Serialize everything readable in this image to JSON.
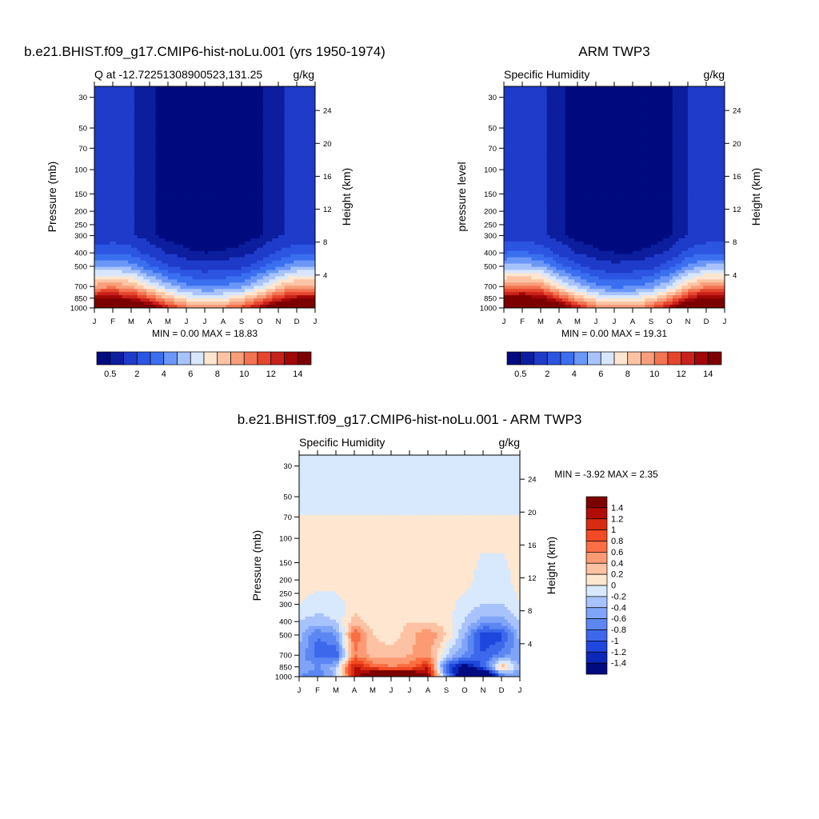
{
  "months": [
    "J",
    "F",
    "M",
    "A",
    "M",
    "J",
    "J",
    "A",
    "S",
    "O",
    "N",
    "D",
    "J"
  ],
  "pressure_ticks": [
    30,
    50,
    70,
    100,
    150,
    200,
    250,
    300,
    400,
    500,
    700,
    850,
    1000
  ],
  "height_ticks": [
    4,
    8,
    12,
    16,
    20,
    24
  ],
  "colors": {
    "q_levels": [
      "#000b7f",
      "#0c1e9e",
      "#1f3bc9",
      "#2c55e2",
      "#3b6ff0",
      "#6b97f7",
      "#a8c3fb",
      "#d9e7fe",
      "#ffe6d0",
      "#fcc4a4",
      "#f89e7b",
      "#f37452",
      "#e5462d",
      "#c8211b",
      "#a10707",
      "#7c0000"
    ],
    "diff_levels": [
      "#7c0000",
      "#b10d06",
      "#d72c12",
      "#f24a24",
      "#fb6e43",
      "#fc9b73",
      "#fdc1a3",
      "#ffe6d0",
      "#d8e8fd",
      "#a8c3fb",
      "#80a5f8",
      "#5c87f2",
      "#3d68ec",
      "#1e47dd",
      "#0b28b8",
      "#000b7f"
    ]
  },
  "panels": [
    {
      "title": "b.e21.BHIST.f09_g17.CMIP6-hist-noLu.001 (yrs 1950-1974)",
      "left_label": "Q at -12.72251308900523,131.25",
      "right_label": "g/kg",
      "ylabel": "Pressure (mb)",
      "ylabel_right": "Height (km)",
      "stats": "MIN =   0.00 MAX =  18.83",
      "colorbar_labels": [
        "0.5",
        "2",
        "4",
        "6",
        "8",
        "10",
        "12",
        "14"
      ]
    },
    {
      "title": "ARM TWP3",
      "left_label": "Specific Humidity",
      "right_label": "g/kg",
      "ylabel": "pressure level",
      "ylabel_right": "Height (km)",
      "stats": "MIN =   0.00 MAX =  19.31",
      "colorbar_labels": [
        "0.5",
        "2",
        "4",
        "6",
        "8",
        "10",
        "12",
        "14"
      ]
    },
    {
      "title": "b.e21.BHIST.f09_g17.CMIP6-hist-noLu.001 - ARM TWP3",
      "left_label": "Specific Humidity",
      "right_label": "g/kg",
      "ylabel": "Pressure (mb)",
      "ylabel_right": "Height (km)",
      "stats": "MIN =  -3.92 MAX =   2.35",
      "colorbar_labels": [
        "1.4",
        "1.2",
        "1",
        "0.8",
        "0.6",
        "0.4",
        "0.2",
        "0",
        "-0.2",
        "-0.4",
        "-0.6",
        "-0.8",
        "-1",
        "-1.2",
        "-1.4"
      ]
    }
  ],
  "chart_data": [
    {
      "type": "heatmap",
      "title": "b.e21.BHIST.f09_g17.CMIP6-hist-noLu.001 (yrs 1950-1974)",
      "xlabel": "",
      "ylabel": "Pressure (mb)",
      "x": [
        "J",
        "F",
        "M",
        "A",
        "M",
        "J",
        "J",
        "A",
        "S",
        "O",
        "N",
        "D",
        "J"
      ],
      "y": [
        1000,
        850,
        700,
        500,
        400,
        300
      ],
      "values": [
        [
          18.5,
          18.8,
          18.2,
          15.5,
          12.5,
          10.5,
          9.8,
          10.2,
          11.5,
          13.5,
          16.5,
          18.3,
          18.5
        ],
        [
          13.5,
          13.8,
          13.0,
          11.0,
          8.8,
          7.3,
          6.8,
          7.1,
          8.0,
          9.8,
          12.0,
          13.5,
          13.5
        ],
        [
          9.5,
          9.8,
          9.2,
          7.2,
          5.5,
          4.3,
          3.9,
          4.1,
          4.7,
          6.2,
          8.2,
          9.5,
          9.5
        ],
        [
          4.8,
          5.0,
          4.6,
          3.2,
          2.1,
          1.5,
          1.3,
          1.4,
          1.7,
          2.6,
          3.9,
          4.8,
          4.8
        ],
        [
          2.8,
          3.0,
          2.6,
          1.6,
          0.9,
          0.6,
          0.5,
          0.55,
          0.7,
          1.2,
          2.1,
          2.8,
          2.8
        ],
        [
          1.2,
          1.3,
          1.1,
          0.6,
          0.3,
          0.2,
          0.15,
          0.18,
          0.25,
          0.45,
          0.9,
          1.2,
          1.2
        ]
      ],
      "levels": [
        0.5,
        1,
        2,
        3,
        4,
        5,
        6,
        7,
        8,
        9,
        10,
        11,
        12,
        13,
        14
      ],
      "ylim": [
        1000,
        25
      ]
    },
    {
      "type": "heatmap",
      "title": "ARM TWP3",
      "xlabel": "",
      "ylabel": "pressure level",
      "x": [
        "J",
        "F",
        "M",
        "A",
        "M",
        "J",
        "J",
        "A",
        "S",
        "O",
        "N",
        "D",
        "J"
      ],
      "y": [
        1000,
        850,
        700,
        500,
        400,
        300
      ],
      "values": [
        [
          19.0,
          19.3,
          18.8,
          16.0,
          12.8,
          10.5,
          9.5,
          9.8,
          11.0,
          13.5,
          17.0,
          19.0,
          19.0
        ],
        [
          14.5,
          14.8,
          14.2,
          11.5,
          9.0,
          7.3,
          6.5,
          6.8,
          7.8,
          9.8,
          12.5,
          14.5,
          14.5
        ],
        [
          10.0,
          10.3,
          9.8,
          7.5,
          5.6,
          4.2,
          3.7,
          3.9,
          4.5,
          6.0,
          8.5,
          10.0,
          10.0
        ],
        [
          5.2,
          5.4,
          5.0,
          3.4,
          2.2,
          1.5,
          1.2,
          1.3,
          1.6,
          2.6,
          4.2,
          5.2,
          5.2
        ],
        [
          3.0,
          3.2,
          2.8,
          1.7,
          0.95,
          0.6,
          0.5,
          0.5,
          0.65,
          1.2,
          2.3,
          3.0,
          3.0
        ],
        [
          1.3,
          1.4,
          1.2,
          0.6,
          0.3,
          0.2,
          0.15,
          0.15,
          0.2,
          0.4,
          1.0,
          1.3,
          1.3
        ]
      ],
      "levels": [
        0.5,
        1,
        2,
        3,
        4,
        5,
        6,
        7,
        8,
        9,
        10,
        11,
        12,
        13,
        14
      ],
      "ylim": [
        1000,
        25
      ]
    },
    {
      "type": "heatmap",
      "title": "b.e21.BHIST.f09_g17.CMIP6-hist-noLu.001 - ARM TWP3",
      "xlabel": "",
      "ylabel": "Pressure (mb)",
      "x": [
        "J",
        "F",
        "M",
        "A",
        "M",
        "J",
        "J",
        "A",
        "S",
        "O",
        "N",
        "D",
        "J"
      ],
      "y": [
        1000,
        850,
        700,
        500,
        400,
        300,
        200,
        100,
        30
      ],
      "values": [
        [
          -0.6,
          -0.8,
          -0.3,
          1.2,
          2.0,
          2.3,
          2.1,
          1.5,
          -0.6,
          -2.0,
          -2.8,
          -0.8,
          -0.6
        ],
        [
          -0.4,
          -0.6,
          -0.3,
          1.3,
          0.8,
          0.6,
          0.7,
          1.2,
          -1.0,
          -1.6,
          -0.9,
          0.4,
          -0.4
        ],
        [
          -0.5,
          -0.9,
          -1.0,
          0.6,
          0.3,
          0.3,
          0.4,
          0.5,
          -0.2,
          -0.6,
          -1.0,
          -0.7,
          -0.5
        ],
        [
          -0.3,
          -0.8,
          -0.6,
          0.8,
          0.2,
          0.1,
          0.3,
          0.6,
          0.2,
          -0.4,
          -1.2,
          -1.1,
          -0.3
        ],
        [
          -0.2,
          -0.3,
          -0.2,
          0.3,
          0.1,
          0.1,
          0.2,
          0.2,
          0.1,
          -0.2,
          -0.5,
          -0.5,
          -0.2
        ],
        [
          0.0,
          -0.1,
          -0.1,
          0.1,
          0.1,
          0.1,
          0.1,
          0.1,
          0.1,
          -0.1,
          -0.2,
          -0.2,
          0.0
        ],
        [
          0.1,
          0.1,
          0.1,
          0.1,
          0.1,
          0.1,
          0.1,
          0.1,
          0.1,
          0.1,
          -0.1,
          -0.1,
          0.1
        ],
        [
          0.05,
          0.05,
          0.05,
          0.05,
          0.05,
          0.05,
          0.05,
          0.05,
          0.05,
          0.05,
          0.05,
          0.05,
          0.05
        ],
        [
          -0.1,
          -0.1,
          -0.1,
          -0.1,
          -0.1,
          -0.1,
          -0.1,
          -0.1,
          -0.1,
          -0.1,
          -0.1,
          -0.1,
          -0.1
        ]
      ],
      "levels": [
        -1.4,
        -1.2,
        -1.0,
        -0.8,
        -0.6,
        -0.4,
        -0.2,
        0,
        0.2,
        0.4,
        0.6,
        0.8,
        1.0,
        1.2,
        1.4
      ],
      "ylim": [
        1000,
        25
      ]
    }
  ]
}
